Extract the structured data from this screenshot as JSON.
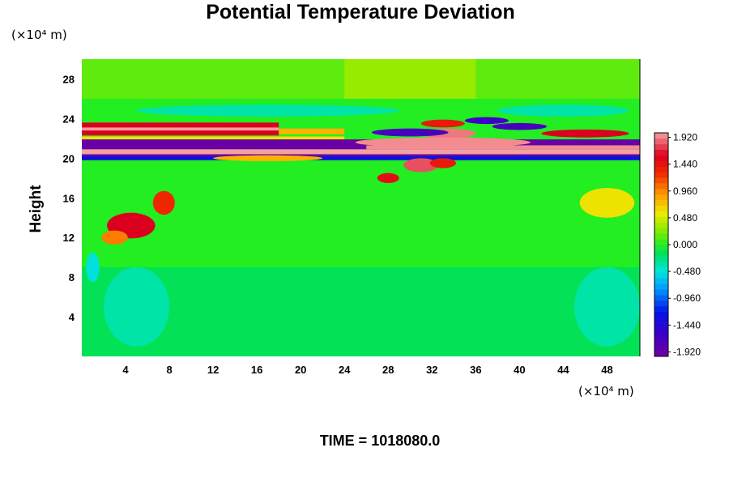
{
  "chart_data": {
    "type": "heatmap",
    "title": "Potential Temperature Deviation",
    "ylabel": "Height",
    "x_unit": "(×10⁴ m)",
    "y_unit": "(×10⁴ m)",
    "xlim": [
      0,
      51
    ],
    "ylim": [
      0,
      30
    ],
    "x_ticks": [
      4,
      8,
      12,
      16,
      20,
      24,
      28,
      32,
      36,
      40,
      44,
      48
    ],
    "y_ticks": [
      4,
      8,
      12,
      16,
      20,
      24,
      28
    ],
    "colorbar": {
      "min": -2.0,
      "max": 2.0,
      "tick_values": [
        1.92,
        1.44,
        0.96,
        0.48,
        0.0,
        -0.48,
        -0.96,
        -1.44,
        -1.92
      ],
      "tick_labels": [
        "1.920",
        "1.440",
        "0.960",
        "0.480",
        "0.000",
        "-0.480",
        "-0.960",
        "-1.440",
        "-1.920"
      ],
      "colormap": "rainbow: purple(min) → blue → cyan → green(0) → yellow → red → pink(max)"
    },
    "features": [
      {
        "label": "strong banded anomalies near tropopause",
        "y_range": [
          19.5,
          24
        ],
        "x_range": [
          0,
          51
        ],
        "values": "alternating -2.0 and +2.0"
      },
      {
        "label": "positive patch",
        "x_range": [
          2,
          10
        ],
        "y_range": [
          11,
          17
        ],
        "value": 1.6
      },
      {
        "label": "positive patch",
        "x_range": [
          30,
          36
        ],
        "y_range": [
          18.5,
          20
        ],
        "value": 1.8
      },
      {
        "label": "positive patch",
        "x_range": [
          46,
          51
        ],
        "y_range": [
          13,
          17
        ],
        "value": 0.6
      },
      {
        "label": "background",
        "value": 0.0
      }
    ],
    "grid": false,
    "legend": "colorbar right"
  },
  "footer": {
    "time_label": "TIME = 1018080.0"
  }
}
